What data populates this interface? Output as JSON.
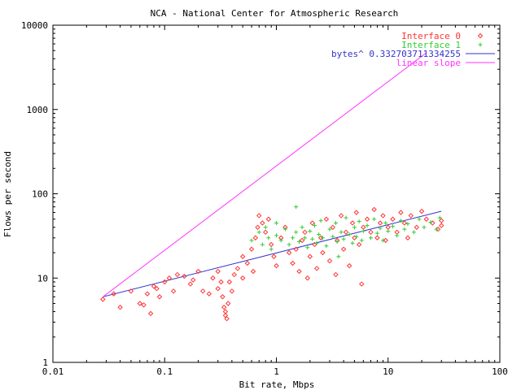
{
  "chart_data": {
    "type": "scatter",
    "title": "NCA - National Center for Atmospheric Research",
    "xlabel": "Bit rate, Mbps",
    "ylabel": "Flows per second",
    "xscale": "log",
    "yscale": "log",
    "xlim": [
      0.01,
      100
    ],
    "ylim": [
      1,
      10000
    ],
    "xticks": [
      "0.01",
      "0.1",
      "1",
      "10",
      "100"
    ],
    "yticks": [
      "1",
      "10",
      "100",
      "1000",
      "10000"
    ],
    "grid": false,
    "legend_position": "top-right",
    "series": [
      {
        "name": "Interface 0",
        "marker": "diamond",
        "color": "#ff3333",
        "points": [
          [
            0.028,
            5.6
          ],
          [
            0.035,
            6.5
          ],
          [
            0.04,
            4.5
          ],
          [
            0.05,
            7.0
          ],
          [
            0.06,
            5.0
          ],
          [
            0.065,
            4.8
          ],
          [
            0.07,
            6.5
          ],
          [
            0.075,
            3.8
          ],
          [
            0.08,
            8.0
          ],
          [
            0.085,
            7.5
          ],
          [
            0.09,
            6.0
          ],
          [
            0.1,
            9.0
          ],
          [
            0.11,
            10.0
          ],
          [
            0.12,
            7.0
          ],
          [
            0.13,
            11.0
          ],
          [
            0.15,
            10.5
          ],
          [
            0.17,
            8.5
          ],
          [
            0.18,
            9.5
          ],
          [
            0.2,
            12.0
          ],
          [
            0.22,
            7.0
          ],
          [
            0.25,
            6.5
          ],
          [
            0.27,
            10.0
          ],
          [
            0.3,
            7.5
          ],
          [
            0.3,
            12.0
          ],
          [
            0.32,
            9.0
          ],
          [
            0.33,
            6.0
          ],
          [
            0.34,
            4.5
          ],
          [
            0.35,
            4.0
          ],
          [
            0.35,
            3.6
          ],
          [
            0.36,
            3.3
          ],
          [
            0.37,
            5.0
          ],
          [
            0.38,
            9.0
          ],
          [
            0.4,
            7.0
          ],
          [
            0.42,
            11.0
          ],
          [
            0.45,
            13.0
          ],
          [
            0.5,
            10.0
          ],
          [
            0.5,
            18.0
          ],
          [
            0.55,
            15.0
          ],
          [
            0.6,
            22.0
          ],
          [
            0.62,
            12.0
          ],
          [
            0.65,
            30.0
          ],
          [
            0.68,
            40.0
          ],
          [
            0.7,
            55.0
          ],
          [
            0.75,
            45.0
          ],
          [
            0.8,
            35.0
          ],
          [
            0.85,
            50.0
          ],
          [
            0.9,
            25.0
          ],
          [
            0.95,
            18.0
          ],
          [
            1.0,
            14.0
          ],
          [
            1.1,
            30.0
          ],
          [
            1.2,
            40.0
          ],
          [
            1.3,
            20.0
          ],
          [
            1.4,
            15.0
          ],
          [
            1.5,
            22.0
          ],
          [
            1.6,
            12.0
          ],
          [
            1.7,
            28.0
          ],
          [
            1.8,
            35.0
          ],
          [
            1.9,
            10.0
          ],
          [
            2.0,
            18.0
          ],
          [
            2.1,
            45.0
          ],
          [
            2.2,
            25.0
          ],
          [
            2.3,
            13.0
          ],
          [
            2.5,
            30.0
          ],
          [
            2.6,
            20.0
          ],
          [
            2.8,
            50.0
          ],
          [
            3.0,
            16.0
          ],
          [
            3.2,
            40.0
          ],
          [
            3.4,
            11.0
          ],
          [
            3.5,
            28.0
          ],
          [
            3.8,
            55.0
          ],
          [
            4.0,
            22.0
          ],
          [
            4.2,
            35.0
          ],
          [
            4.5,
            14.0
          ],
          [
            4.8,
            45.0
          ],
          [
            5.0,
            30.0
          ],
          [
            5.2,
            60.0
          ],
          [
            5.5,
            25.0
          ],
          [
            5.8,
            8.5
          ],
          [
            6.0,
            40.0
          ],
          [
            6.5,
            50.0
          ],
          [
            7.0,
            35.0
          ],
          [
            7.5,
            65.0
          ],
          [
            8.0,
            30.0
          ],
          [
            8.5,
            45.0
          ],
          [
            9.0,
            55.0
          ],
          [
            9.5,
            28.0
          ],
          [
            10.0,
            40.0
          ],
          [
            11.0,
            50.0
          ],
          [
            12.0,
            35.0
          ],
          [
            13.0,
            60.0
          ],
          [
            14.0,
            45.0
          ],
          [
            15.0,
            30.0
          ],
          [
            16.0,
            55.0
          ],
          [
            18.0,
            40.0
          ],
          [
            20.0,
            62.0
          ],
          [
            22.0,
            50.0
          ],
          [
            25.0,
            45.0
          ],
          [
            28.0,
            38.0
          ],
          [
            30.0,
            42.0
          ],
          [
            30.0,
            48.0
          ]
        ]
      },
      {
        "name": "Interface 1",
        "marker": "plus",
        "color": "#33cc33",
        "points": [
          [
            0.6,
            28.0
          ],
          [
            0.7,
            35.0
          ],
          [
            0.75,
            25.0
          ],
          [
            0.8,
            40.0
          ],
          [
            0.85,
            30.0
          ],
          [
            0.9,
            22.0
          ],
          [
            1.0,
            45.0
          ],
          [
            1.0,
            32.0
          ],
          [
            1.1,
            28.0
          ],
          [
            1.2,
            38.0
          ],
          [
            1.3,
            25.0
          ],
          [
            1.4,
            30.0
          ],
          [
            1.5,
            70.0
          ],
          [
            1.5,
            35.0
          ],
          [
            1.6,
            27.0
          ],
          [
            1.7,
            40.0
          ],
          [
            1.8,
            30.0
          ],
          [
            1.9,
            23.0
          ],
          [
            2.0,
            36.0
          ],
          [
            2.1,
            29.0
          ],
          [
            2.2,
            42.0
          ],
          [
            2.3,
            26.0
          ],
          [
            2.4,
            33.0
          ],
          [
            2.5,
            48.0
          ],
          [
            2.6,
            30.0
          ],
          [
            2.8,
            24.0
          ],
          [
            3.0,
            38.0
          ],
          [
            3.2,
            31.0
          ],
          [
            3.4,
            45.0
          ],
          [
            3.5,
            27.0
          ],
          [
            3.6,
            18.0
          ],
          [
            3.8,
            35.0
          ],
          [
            4.0,
            29.0
          ],
          [
            4.2,
            52.0
          ],
          [
            4.5,
            33.0
          ],
          [
            4.8,
            26.0
          ],
          [
            5.0,
            40.0
          ],
          [
            5.2,
            31.0
          ],
          [
            5.5,
            47.0
          ],
          [
            5.8,
            28.0
          ],
          [
            6.0,
            36.0
          ],
          [
            6.5,
            42.0
          ],
          [
            7.0,
            30.0
          ],
          [
            7.5,
            50.0
          ],
          [
            8.0,
            34.0
          ],
          [
            8.5,
            39.0
          ],
          [
            9.0,
            28.0
          ],
          [
            9.5,
            45.0
          ],
          [
            10.0,
            36.0
          ],
          [
            11.0,
            41.0
          ],
          [
            12.0,
            32.0
          ],
          [
            13.0,
            48.0
          ],
          [
            14.0,
            38.0
          ],
          [
            15.0,
            44.0
          ],
          [
            17.0,
            35.0
          ],
          [
            19.0,
            50.0
          ],
          [
            21.0,
            40.0
          ],
          [
            24.0,
            46.0
          ],
          [
            27.0,
            38.0
          ],
          [
            29.0,
            52.0
          ]
        ]
      }
    ],
    "lines": [
      {
        "name": "bytes^ 0.332703711334255",
        "color": "#3333cc",
        "x": [
          0.028,
          30.0
        ],
        "y": [
          6.0,
          62.0
        ]
      },
      {
        "name": "linear slope",
        "color": "#ff33ff",
        "x": [
          0.028,
          22.0
        ],
        "y": [
          6.0,
          4700.0
        ]
      }
    ]
  }
}
